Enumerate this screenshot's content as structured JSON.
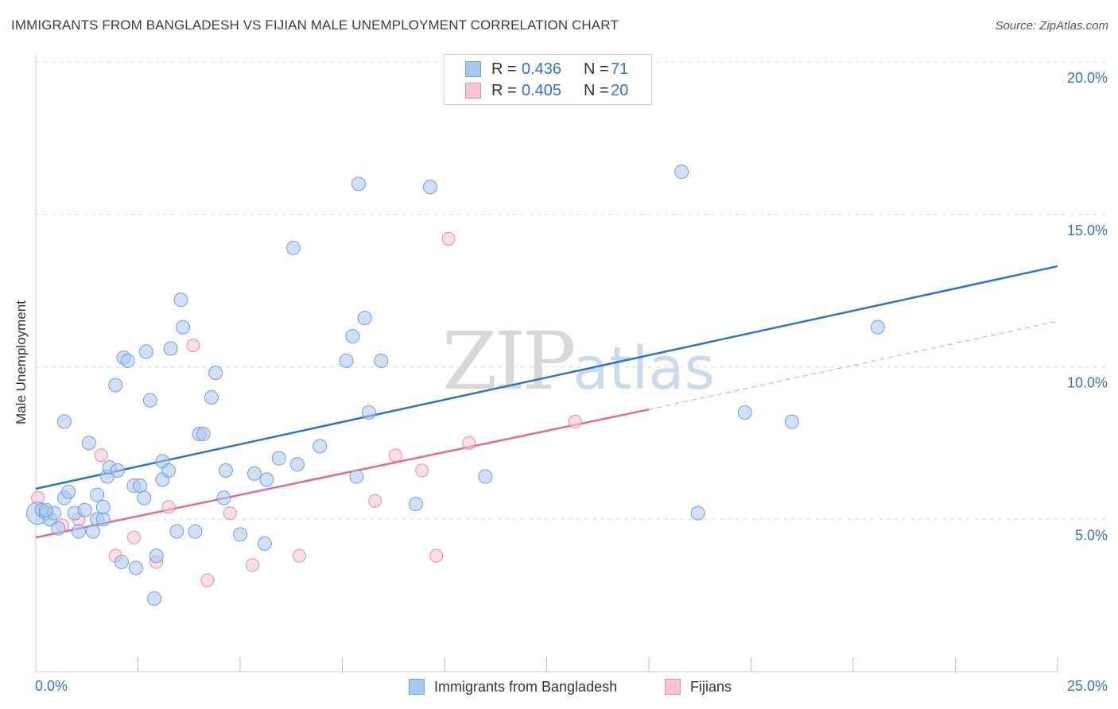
{
  "header": {
    "title": "IMMIGRANTS FROM BANGLADESH VS FIJIAN MALE UNEMPLOYMENT CORRELATION CHART",
    "source": "Source: ZipAtlas.com"
  },
  "legend": {
    "rows": [
      {
        "r_label": "R =",
        "r_value": "0.436",
        "n_label": "N =",
        "n_value": "71",
        "color": "#a9c8f0",
        "border": "#6f9fdc"
      },
      {
        "r_label": "R =",
        "r_value": "0.405",
        "n_label": "N =",
        "n_value": "20",
        "color": "#f8c3d3",
        "border": "#e88aa8"
      }
    ]
  },
  "watermark": {
    "zip": "ZIP",
    "atlas": "atlas"
  },
  "colors": {
    "blue_fill": "#a9c8f0",
    "blue_stroke": "#6f9fdc",
    "blue_line": "#2f73c9",
    "pink_fill": "#f8c3d3",
    "pink_stroke": "#e88aa8",
    "pink_line": "#e06a93",
    "axis_label": "#2f73c9",
    "grid": "#dddddd"
  },
  "chart_data": {
    "type": "scatter",
    "title": "IMMIGRANTS FROM BANGLADESH VS FIJIAN MALE UNEMPLOYMENT CORRELATION CHART",
    "xlabel": "",
    "ylabel": "Male Unemployment",
    "xlim": [
      0,
      25
    ],
    "ylim": [
      0,
      20
    ],
    "x_tick_labels": [
      "0.0%",
      "25.0%"
    ],
    "y_tick_values": [
      5,
      10,
      15,
      20
    ],
    "y_tick_labels": [
      "5.0%",
      "10.0%",
      "15.0%",
      "20.0%"
    ],
    "grid": true,
    "legend_position": "bottom-center",
    "series": [
      {
        "name": "Immigrants from Bangladesh",
        "color": "#a9c8f0",
        "trend": {
          "x": [
            0,
            25
          ],
          "y": [
            6.0,
            13.3
          ],
          "style": "solid"
        },
        "points": [
          [
            0.05,
            5.2
          ],
          [
            0.15,
            5.3
          ],
          [
            0.25,
            5.2
          ],
          [
            0.35,
            5.0
          ],
          [
            0.45,
            5.2
          ],
          [
            0.55,
            4.7
          ],
          [
            0.7,
            5.7
          ],
          [
            0.8,
            5.9
          ],
          [
            0.7,
            8.2
          ],
          [
            0.95,
            5.2
          ],
          [
            1.05,
            4.6
          ],
          [
            1.2,
            5.3
          ],
          [
            1.3,
            7.5
          ],
          [
            1.4,
            4.6
          ],
          [
            1.5,
            5.0
          ],
          [
            1.5,
            5.8
          ],
          [
            1.65,
            5.0
          ],
          [
            1.65,
            5.4
          ],
          [
            1.75,
            6.4
          ],
          [
            1.8,
            6.7
          ],
          [
            1.95,
            9.4
          ],
          [
            2.0,
            6.6
          ],
          [
            2.1,
            3.6
          ],
          [
            2.15,
            10.3
          ],
          [
            2.25,
            10.2
          ],
          [
            2.4,
            6.1
          ],
          [
            2.45,
            3.4
          ],
          [
            2.55,
            6.1
          ],
          [
            2.65,
            5.7
          ],
          [
            2.7,
            10.5
          ],
          [
            2.8,
            8.9
          ],
          [
            2.9,
            2.4
          ],
          [
            2.95,
            3.8
          ],
          [
            3.1,
            6.3
          ],
          [
            3.1,
            6.9
          ],
          [
            3.25,
            6.6
          ],
          [
            3.3,
            10.6
          ],
          [
            3.45,
            4.6
          ],
          [
            3.55,
            12.2
          ],
          [
            3.6,
            11.3
          ],
          [
            3.9,
            4.6
          ],
          [
            4.0,
            7.8
          ],
          [
            4.1,
            7.8
          ],
          [
            4.3,
            9.0
          ],
          [
            4.4,
            9.8
          ],
          [
            4.6,
            5.7
          ],
          [
            4.65,
            6.6
          ],
          [
            5.0,
            4.5
          ],
          [
            5.35,
            6.5
          ],
          [
            5.6,
            4.2
          ],
          [
            5.65,
            6.3
          ],
          [
            5.95,
            7.0
          ],
          [
            6.3,
            13.9
          ],
          [
            6.4,
            6.8
          ],
          [
            6.95,
            7.4
          ],
          [
            7.6,
            10.2
          ],
          [
            7.75,
            11.0
          ],
          [
            7.85,
            6.4
          ],
          [
            7.9,
            16.0
          ],
          [
            8.05,
            11.6
          ],
          [
            8.15,
            8.5
          ],
          [
            8.45,
            10.2
          ],
          [
            9.3,
            5.5
          ],
          [
            9.65,
            15.9
          ],
          [
            11.0,
            6.4
          ],
          [
            15.8,
            16.4
          ],
          [
            16.2,
            5.2
          ],
          [
            17.35,
            8.5
          ],
          [
            18.5,
            8.2
          ],
          [
            20.6,
            11.3
          ],
          [
            0.25,
            5.3
          ]
        ]
      },
      {
        "name": "Fijians",
        "color": "#f8c3d3",
        "trend": {
          "x": [
            0,
            15
          ],
          "y": [
            4.4,
            8.6
          ],
          "x_dashed": [
            15,
            25
          ],
          "y_dashed": [
            8.6,
            11.5
          ],
          "style": "solid+dashed"
        },
        "points": [
          [
            0.05,
            5.7
          ],
          [
            0.65,
            4.8
          ],
          [
            1.05,
            5.0
          ],
          [
            1.6,
            7.1
          ],
          [
            1.95,
            3.8
          ],
          [
            2.4,
            4.4
          ],
          [
            2.95,
            3.6
          ],
          [
            3.25,
            5.4
          ],
          [
            3.85,
            10.7
          ],
          [
            4.2,
            3.0
          ],
          [
            4.75,
            5.2
          ],
          [
            5.3,
            3.5
          ],
          [
            6.45,
            3.8
          ],
          [
            8.3,
            5.6
          ],
          [
            8.8,
            7.1
          ],
          [
            9.45,
            6.6
          ],
          [
            9.8,
            3.8
          ],
          [
            10.1,
            14.2
          ],
          [
            10.6,
            7.5
          ],
          [
            13.2,
            8.2
          ]
        ]
      }
    ]
  }
}
